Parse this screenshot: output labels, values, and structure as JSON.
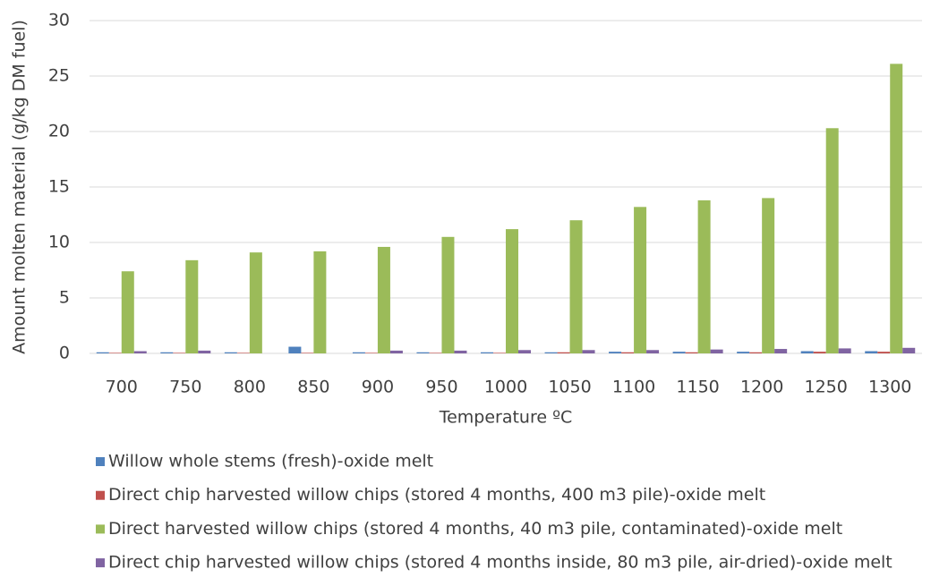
{
  "chart_data": {
    "type": "bar",
    "y_label": "Amount molten material (g/kg DM fuel)",
    "x_label": "Temperature ºC",
    "categories": [
      "700",
      "750",
      "800",
      "850",
      "900",
      "950",
      "1000",
      "1050",
      "1100",
      "1150",
      "1200",
      "1250",
      "1300"
    ],
    "series": [
      {
        "name": "Willow whole stems (fresh)-oxide melt",
        "color": "#4f81bd",
        "values": [
          0.1,
          0.1,
          0.1,
          0.6,
          0.1,
          0.1,
          0.1,
          0.1,
          0.15,
          0.15,
          0.15,
          0.2,
          0.2
        ]
      },
      {
        "name": "Direct chip harvested willow chips (stored 4 months, 400 m3 pile)-oxide melt",
        "color": "#c0504d",
        "values": [
          0.05,
          0.05,
          0.05,
          0.05,
          0.05,
          0.05,
          0.05,
          0.1,
          0.1,
          0.1,
          0.1,
          0.15,
          0.15
        ]
      },
      {
        "name": "Direct harvested willow chips (stored 4 months, 40 m3 pile, contaminated)-oxide melt",
        "color": "#9bbb59",
        "values": [
          7.4,
          8.4,
          9.1,
          9.2,
          9.6,
          10.5,
          11.2,
          12.0,
          13.2,
          13.8,
          14.0,
          20.3,
          26.1
        ]
      },
      {
        "name": "Direct chip harvested willow chips (stored 4 months inside, 80 m3 pile, air-dried)-oxide melt",
        "color": "#8064a2",
        "values": [
          0.2,
          0.25,
          0,
          0,
          0.25,
          0.25,
          0.3,
          0.3,
          0.3,
          0.35,
          0.4,
          0.45,
          0.5
        ]
      }
    ],
    "ylim": [
      0,
      30
    ],
    "yticks": [
      0,
      5,
      10,
      15,
      20,
      25,
      30
    ],
    "grid": true
  }
}
